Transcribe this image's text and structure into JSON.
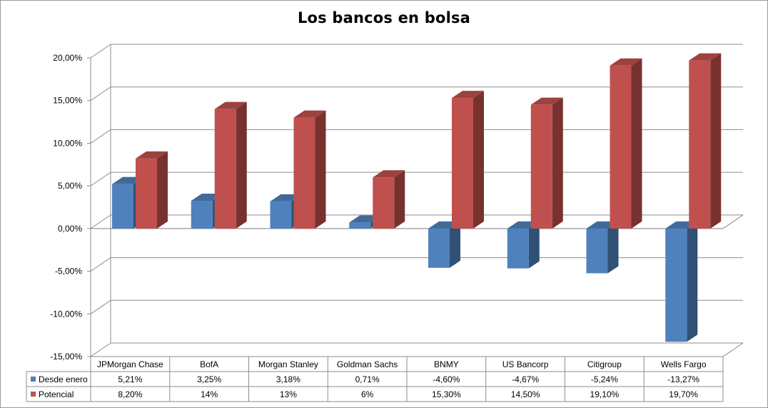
{
  "chart_data": {
    "type": "bar",
    "title": "Los bancos en bolsa",
    "categories": [
      "JPMorgan Chase",
      "BofA",
      "Morgan Stanley",
      "Goldman Sachs",
      "BNMY",
      "US Bancorp",
      "Citigroup",
      "Wells Fargo"
    ],
    "series": [
      {
        "name": "Desde enero",
        "color": "#4f81bd",
        "values": [
          5.21,
          3.25,
          3.18,
          0.71,
          -4.6,
          -4.67,
          -5.24,
          -13.27
        ],
        "labels": [
          "5,21%",
          "3,25%",
          "3,18%",
          "0,71%",
          "-4,60%",
          "-4,67%",
          "-5,24%",
          "-13,27%"
        ]
      },
      {
        "name": "Potencial",
        "color": "#c0504d",
        "values": [
          8.2,
          14,
          13,
          6,
          15.3,
          14.5,
          19.1,
          19.7
        ],
        "labels": [
          "8,20%",
          "14%",
          "13%",
          "6%",
          "15,30%",
          "14,50%",
          "19,10%",
          "19,70%"
        ]
      }
    ],
    "ylim": [
      -15,
      20
    ],
    "yticks": [
      20,
      15,
      10,
      5,
      0,
      -5,
      -10,
      -15
    ],
    "ytick_labels": [
      "20,00%",
      "15,00%",
      "10,00%",
      "5,00%",
      "0,00%",
      "-5,00%",
      "-10,00%",
      "-15,00%"
    ],
    "grid": true,
    "legend": "data-table",
    "style": "3d-column"
  }
}
